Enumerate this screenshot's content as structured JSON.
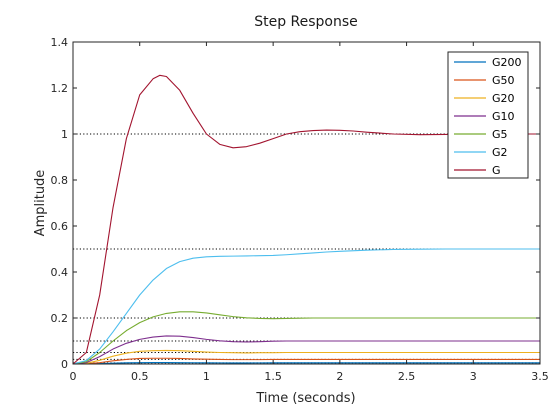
{
  "chart_data": {
    "type": "line",
    "title": "Step Response",
    "xlabel": "Time (seconds)",
    "ylabel": "Amplitude",
    "xlim": [
      0,
      3.5
    ],
    "ylim": [
      0,
      1.4
    ],
    "xticks": [
      0,
      0.5,
      1,
      1.5,
      2,
      2.5,
      3,
      3.5
    ],
    "xtick_labels": [
      "0",
      "0.5",
      "1",
      "1.5",
      "2",
      "2.5",
      "3",
      "3.5"
    ],
    "yticks": [
      0,
      0.2,
      0.4,
      0.6,
      0.8,
      1,
      1.2,
      1.4
    ],
    "ytick_labels": [
      "0",
      "0.2",
      "0.4",
      "0.6",
      "0.8",
      "1",
      "1.2",
      "1.4"
    ],
    "grid": false,
    "legend_position": "top-right",
    "reference_lines": [
      1,
      0.5,
      0.2,
      0.1,
      0.05,
      0.02,
      0.005
    ],
    "series": [
      {
        "name": "G200",
        "color": "#0072BD",
        "x": [
          0,
          0.1,
          0.2,
          0.3,
          0.4,
          0.5,
          0.6,
          0.7,
          0.8,
          0.9,
          1.0,
          1.1,
          1.2,
          1.3,
          1.4,
          1.5,
          1.6,
          1.7,
          1.8,
          1.9,
          2.0,
          2.2,
          2.4,
          2.6,
          2.8,
          3.0,
          3.2,
          3.5
        ],
        "y": [
          0,
          0.0003,
          0.0017,
          0.0036,
          0.005,
          0.0059,
          0.0062,
          0.0061,
          0.0058,
          0.0054,
          0.0051,
          0.0049,
          0.0048,
          0.0048,
          0.0049,
          0.005,
          0.005,
          0.005,
          0.005,
          0.005,
          0.005,
          0.005,
          0.005,
          0.005,
          0.005,
          0.005,
          0.005,
          0.005
        ]
      },
      {
        "name": "G50",
        "color": "#D95319",
        "x": [
          0,
          0.1,
          0.2,
          0.3,
          0.4,
          0.5,
          0.6,
          0.7,
          0.8,
          0.9,
          1.0,
          1.1,
          1.2,
          1.3,
          1.4,
          1.5,
          1.6,
          1.7,
          1.8,
          1.9,
          2.0,
          2.2,
          2.4,
          2.6,
          2.8,
          3.0,
          3.2,
          3.5
        ],
        "y": [
          0,
          0.001,
          0.006,
          0.014,
          0.02,
          0.024,
          0.025,
          0.025,
          0.024,
          0.022,
          0.021,
          0.02,
          0.019,
          0.019,
          0.019,
          0.02,
          0.02,
          0.02,
          0.02,
          0.02,
          0.02,
          0.02,
          0.02,
          0.02,
          0.02,
          0.02,
          0.02,
          0.02
        ]
      },
      {
        "name": "G20",
        "color": "#EDB120",
        "x": [
          0,
          0.1,
          0.2,
          0.3,
          0.4,
          0.5,
          0.6,
          0.7,
          0.8,
          0.9,
          1.0,
          1.1,
          1.2,
          1.3,
          1.4,
          1.5,
          1.6,
          1.7,
          1.8,
          1.9,
          2.0,
          2.2,
          2.4,
          2.6,
          2.8,
          3.0,
          3.2,
          3.5
        ],
        "y": [
          0,
          0.003,
          0.016,
          0.034,
          0.047,
          0.055,
          0.058,
          0.059,
          0.058,
          0.055,
          0.052,
          0.05,
          0.049,
          0.048,
          0.049,
          0.049,
          0.05,
          0.05,
          0.05,
          0.05,
          0.05,
          0.05,
          0.05,
          0.05,
          0.05,
          0.05,
          0.05,
          0.05
        ]
      },
      {
        "name": "G10",
        "color": "#7E2F8E",
        "x": [
          0,
          0.1,
          0.2,
          0.3,
          0.4,
          0.5,
          0.6,
          0.7,
          0.8,
          0.9,
          1.0,
          1.1,
          1.2,
          1.3,
          1.4,
          1.5,
          1.6,
          1.7,
          1.8,
          1.9,
          2.0,
          2.2,
          2.4,
          2.6,
          2.8,
          3.0,
          3.2,
          3.5
        ],
        "y": [
          0,
          0.006,
          0.032,
          0.065,
          0.09,
          0.107,
          0.117,
          0.122,
          0.121,
          0.115,
          0.107,
          0.101,
          0.097,
          0.096,
          0.097,
          0.099,
          0.1,
          0.1,
          0.1,
          0.1,
          0.1,
          0.1,
          0.1,
          0.1,
          0.1,
          0.1,
          0.1,
          0.1
        ]
      },
      {
        "name": "G5",
        "color": "#77AC30",
        "x": [
          0,
          0.1,
          0.2,
          0.3,
          0.4,
          0.5,
          0.6,
          0.7,
          0.8,
          0.9,
          1.0,
          1.1,
          1.2,
          1.3,
          1.4,
          1.5,
          1.6,
          1.7,
          1.8,
          1.9,
          2.0,
          2.2,
          2.4,
          2.6,
          2.8,
          3.0,
          3.2,
          3.5
        ],
        "y": [
          0,
          0.01,
          0.05,
          0.1,
          0.145,
          0.18,
          0.205,
          0.22,
          0.227,
          0.227,
          0.222,
          0.214,
          0.206,
          0.201,
          0.198,
          0.197,
          0.198,
          0.199,
          0.2,
          0.2,
          0.2,
          0.2,
          0.2,
          0.2,
          0.2,
          0.2,
          0.2,
          0.2
        ]
      },
      {
        "name": "G2",
        "color": "#4DBEEE",
        "x": [
          0,
          0.1,
          0.2,
          0.3,
          0.4,
          0.5,
          0.6,
          0.7,
          0.8,
          0.9,
          1.0,
          1.1,
          1.2,
          1.3,
          1.4,
          1.5,
          1.6,
          1.7,
          1.8,
          1.9,
          2.0,
          2.2,
          2.4,
          2.6,
          2.8,
          3.0,
          3.2,
          3.5
        ],
        "y": [
          0,
          0.015,
          0.065,
          0.14,
          0.22,
          0.3,
          0.365,
          0.415,
          0.445,
          0.46,
          0.466,
          0.468,
          0.469,
          0.47,
          0.471,
          0.472,
          0.475,
          0.479,
          0.483,
          0.487,
          0.49,
          0.495,
          0.498,
          0.499,
          0.5,
          0.5,
          0.5,
          0.5
        ]
      },
      {
        "name": "G",
        "color": "#A2142F",
        "x": [
          0,
          0.1,
          0.2,
          0.3,
          0.4,
          0.5,
          0.6,
          0.65,
          0.7,
          0.8,
          0.9,
          1.0,
          1.1,
          1.2,
          1.3,
          1.4,
          1.5,
          1.6,
          1.7,
          1.8,
          1.9,
          2.0,
          2.1,
          2.2,
          2.4,
          2.6,
          2.8,
          3.0,
          3.2,
          3.5
        ],
        "y": [
          0,
          0.05,
          0.3,
          0.68,
          0.98,
          1.17,
          1.24,
          1.255,
          1.25,
          1.19,
          1.09,
          1.0,
          0.955,
          0.94,
          0.945,
          0.96,
          0.98,
          1.0,
          1.01,
          1.015,
          1.017,
          1.016,
          1.013,
          1.008,
          1.0,
          0.997,
          0.998,
          1.0,
          1.0,
          1.0
        ]
      }
    ]
  }
}
